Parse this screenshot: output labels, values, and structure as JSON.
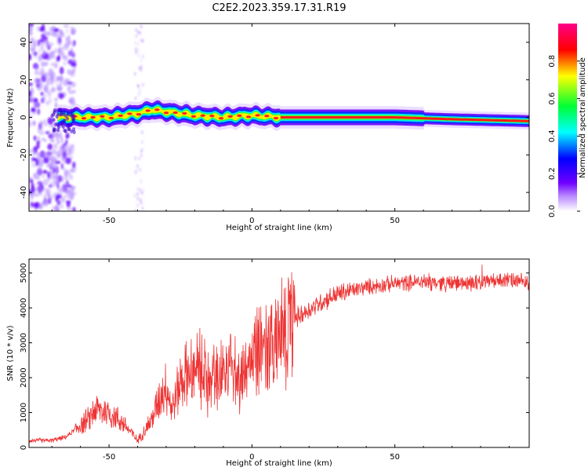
{
  "title": "C2E2.2023.359.17.31.R19",
  "chart_data": [
    {
      "type": "heatmap",
      "name": "spectrogram",
      "xlabel": "Height of straight line (km)",
      "ylabel": "Frequency (Hz)",
      "xlim": [
        -78,
        97
      ],
      "ylim": [
        -50,
        50
      ],
      "xticks": [
        -50,
        0,
        50
      ],
      "yticks": [
        -40,
        -20,
        0,
        20,
        40
      ],
      "colorbar": {
        "label": "Normalized spectral amplitude",
        "range": [
          0.0,
          1.0
        ],
        "ticks": [
          0.0,
          0.2,
          0.4,
          0.6,
          0.8
        ],
        "tick_labels": [
          "0.0",
          "0.2",
          "0.4",
          "0.6",
          "0.8"
        ],
        "colors": [
          "#ffffff",
          "#8a00ff",
          "#0000ff",
          "#00ffff",
          "#00ff00",
          "#ffff00",
          "#ff0000",
          "#ff00aa"
        ]
      },
      "ridge_frequency_points": [
        {
          "x": -68,
          "y": 0
        },
        {
          "x": -60,
          "y": 0
        },
        {
          "x": -50,
          "y": 0
        },
        {
          "x": -40,
          "y": 2
        },
        {
          "x": -35,
          "y": 4
        },
        {
          "x": -30,
          "y": 3
        },
        {
          "x": -20,
          "y": 1
        },
        {
          "x": -10,
          "y": 0
        },
        {
          "x": 0,
          "y": 1
        },
        {
          "x": 10,
          "y": 0
        },
        {
          "x": 30,
          "y": 0
        },
        {
          "x": 50,
          "y": 0
        },
        {
          "x": 70,
          "y": -1
        },
        {
          "x": 97,
          "y": -2
        }
      ]
    },
    {
      "type": "line",
      "name": "snr",
      "xlabel": "Height of straight line (km)",
      "ylabel": "SNR (10 * v/v)",
      "xlim": [
        -78,
        97
      ],
      "ylim": [
        0,
        5400
      ],
      "xticks": [
        -50,
        0,
        50
      ],
      "yticks": [
        0,
        1000,
        2000,
        3000,
        4000,
        5000
      ],
      "color": "#ee3333",
      "series": [
        {
          "name": "SNR",
          "x": [
            -78,
            -70,
            -65,
            -60,
            -57,
            -55,
            -50,
            -45,
            -40,
            -35,
            -32,
            -30,
            -28,
            -25,
            -22,
            -20,
            -17,
            -15,
            -12,
            -10,
            -7,
            -5,
            -2,
            0,
            3,
            5,
            8,
            12,
            15,
            20,
            25,
            30,
            40,
            50,
            60,
            70,
            80,
            90,
            97
          ],
          "y": [
            200,
            200,
            300,
            650,
            800,
            1100,
            1000,
            700,
            200,
            800,
            1500,
            1800,
            1100,
            1900,
            2200,
            2100,
            2400,
            1900,
            2300,
            2200,
            2500,
            1900,
            2500,
            2600,
            2900,
            2800,
            3100,
            3500,
            3700,
            3950,
            4200,
            4400,
            4600,
            4700,
            4750,
            4700,
            4750,
            4800,
            4700
          ]
        }
      ]
    }
  ]
}
